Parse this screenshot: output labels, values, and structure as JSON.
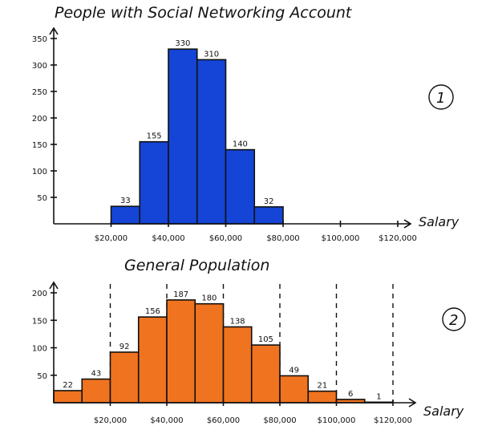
{
  "chart_data": [
    {
      "type": "bar",
      "title": "People with Social Networking Account",
      "xlabel": "Salary",
      "ylabel": "",
      "marker": "1",
      "categories": [
        "$20,000-$30,000",
        "$30,000-$40,000",
        "$40,000-$50,000",
        "$50,000-$60,000",
        "$60,000-$70,000",
        "$70,000-$80,000"
      ],
      "x_start": [
        20000,
        30000,
        40000,
        50000,
        60000,
        70000
      ],
      "bin_width": 10000,
      "values": [
        33,
        155,
        330,
        310,
        140,
        32
      ],
      "value_labels": [
        "33",
        "155",
        "330",
        "310",
        "140",
        "32"
      ],
      "x_ticks": [
        20000,
        40000,
        60000,
        80000,
        100000,
        120000
      ],
      "x_tick_labels": [
        "$20,000",
        "$40,000",
        "$60,000",
        "$80,000",
        "$100,000",
        "$120,000"
      ],
      "y_ticks": [
        50,
        100,
        150,
        200,
        250,
        300,
        350
      ],
      "y_tick_labels": [
        "50",
        "100",
        "150",
        "200",
        "250",
        "300",
        "350"
      ],
      "ylim": [
        0,
        350
      ],
      "xlim": [
        0,
        130000
      ],
      "color": "#1545d6"
    },
    {
      "type": "bar",
      "title": "General Population",
      "xlabel": "Salary",
      "ylabel": "",
      "marker": "2",
      "categories": [
        "$0-$10,000",
        "$10,000-$20,000",
        "$20,000-$30,000",
        "$30,000-$40,000",
        "$40,000-$50,000",
        "$50,000-$60,000",
        "$60,000-$70,000",
        "$70,000-$80,000",
        "$80,000-$90,000",
        "$90,000-$100,000",
        "$100,000-$110,000",
        "$110,000-$120,000"
      ],
      "x_start": [
        0,
        10000,
        20000,
        30000,
        40000,
        50000,
        60000,
        70000,
        80000,
        90000,
        100000,
        110000
      ],
      "bin_width": 10000,
      "values": [
        22,
        43,
        92,
        156,
        187,
        180,
        138,
        105,
        49,
        21,
        6,
        1
      ],
      "value_labels": [
        "22",
        "43",
        "92",
        "156",
        "187",
        "180",
        "138",
        "105",
        "49",
        "21",
        "6",
        "1"
      ],
      "x_ticks": [
        20000,
        40000,
        60000,
        80000,
        100000,
        120000
      ],
      "x_tick_labels": [
        "$20,000",
        "$40,000",
        "$60,000",
        "$80,000",
        "$100,000",
        "$120,000"
      ],
      "y_ticks": [
        50,
        100,
        150,
        200
      ],
      "y_tick_labels": [
        "50",
        "100",
        "150",
        "200"
      ],
      "ylim": [
        0,
        210
      ],
      "xlim": [
        0,
        130000
      ],
      "dashed_lines_at": [
        20000,
        40000,
        60000,
        80000,
        100000,
        120000
      ],
      "color": "#f0731f"
    }
  ]
}
